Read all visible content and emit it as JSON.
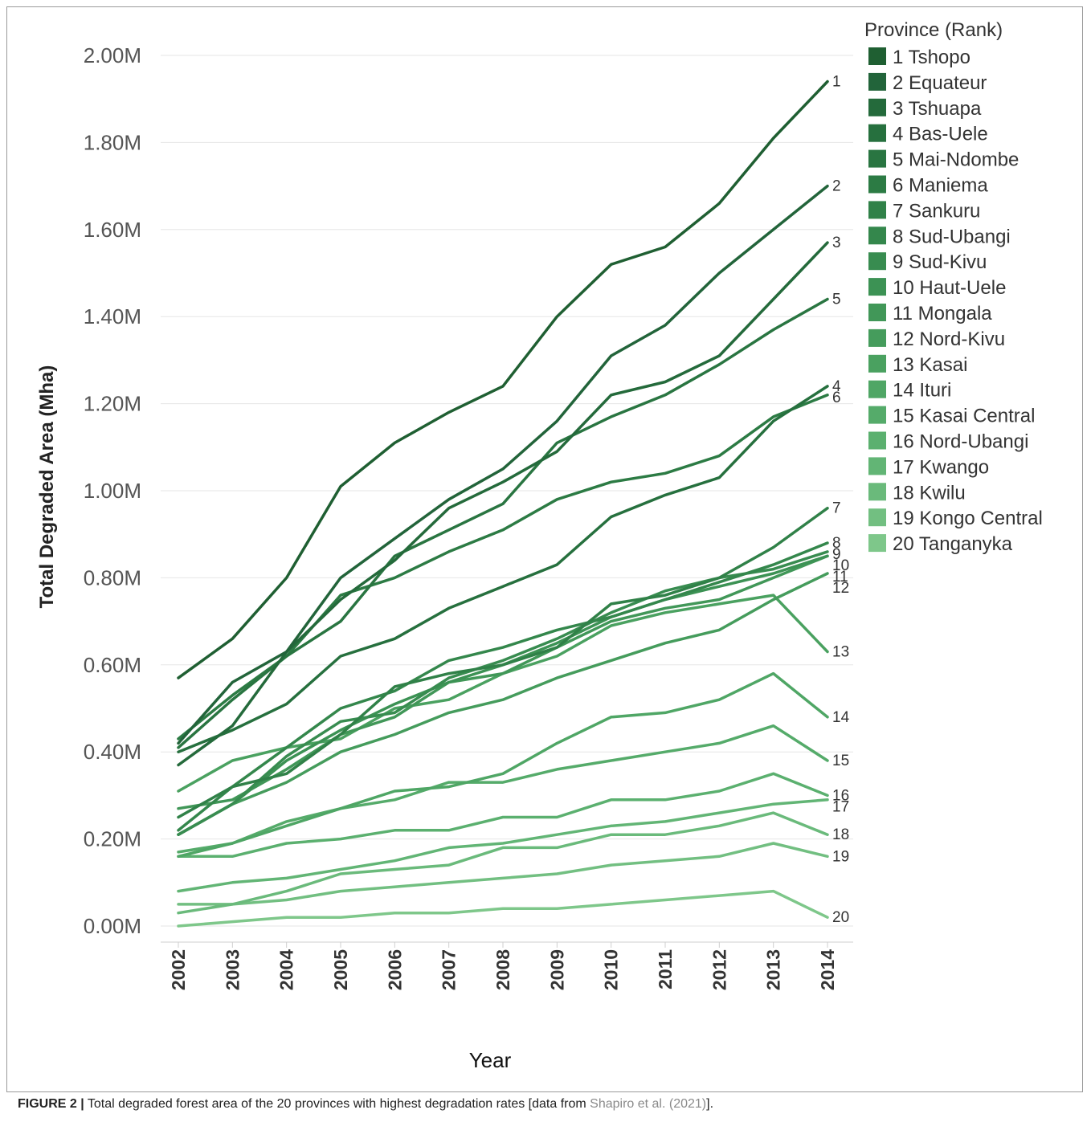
{
  "chart_data": {
    "type": "line",
    "ylabel": "Total Degraded Area (Mha)",
    "xlabel": "Year",
    "x": [
      "2002",
      "2003",
      "2004",
      "2005",
      "2006",
      "2007",
      "2008",
      "2009",
      "2010",
      "2011",
      "2012",
      "2013",
      "2014"
    ],
    "y_ticks": [
      "2.00M",
      "1.80M",
      "1.60M",
      "1.40M",
      "1.20M",
      "1.00M",
      "0.80M",
      "0.60M",
      "0.40M",
      "0.20M",
      "0.00M"
    ],
    "ylim": [
      0,
      2.0
    ],
    "legend_title": "Province (Rank)",
    "legend_position": "right",
    "series": [
      {
        "name": "1 Tshopo",
        "label": "1",
        "color": "#1f5f32",
        "values": [
          0.57,
          0.66,
          0.8,
          1.01,
          1.11,
          1.18,
          1.24,
          1.4,
          1.52,
          1.56,
          1.66,
          1.81,
          1.94
        ]
      },
      {
        "name": "2 Equateur",
        "label": "2",
        "color": "#22643a",
        "values": [
          0.42,
          0.56,
          0.63,
          0.8,
          0.89,
          0.98,
          1.05,
          1.16,
          1.31,
          1.38,
          1.5,
          1.6,
          1.7
        ]
      },
      {
        "name": "3 Tshuapa",
        "label": "3",
        "color": "#246a3b",
        "values": [
          0.37,
          0.46,
          0.63,
          0.75,
          0.84,
          0.96,
          1.02,
          1.09,
          1.22,
          1.25,
          1.31,
          1.44,
          1.57
        ]
      },
      {
        "name": "4 Bas-Uele",
        "label": "4",
        "color": "#26703e",
        "values": [
          0.4,
          0.45,
          0.51,
          0.62,
          0.66,
          0.73,
          0.78,
          0.83,
          0.94,
          0.99,
          1.03,
          1.16,
          1.24
        ]
      },
      {
        "name": "5 Mai-Ndombe",
        "label": "5",
        "color": "#297541",
        "values": [
          0.41,
          0.52,
          0.62,
          0.7,
          0.85,
          0.91,
          0.97,
          1.11,
          1.17,
          1.22,
          1.29,
          1.37,
          1.44
        ]
      },
      {
        "name": "6 Maniema",
        "label": "6",
        "color": "#2c7b44",
        "values": [
          0.43,
          0.53,
          0.62,
          0.76,
          0.8,
          0.86,
          0.91,
          0.98,
          1.02,
          1.04,
          1.08,
          1.17,
          1.22
        ]
      },
      {
        "name": "7 Sankuru",
        "label": "7",
        "color": "#308148",
        "values": [
          0.25,
          0.32,
          0.35,
          0.44,
          0.55,
          0.58,
          0.6,
          0.64,
          0.74,
          0.76,
          0.8,
          0.87,
          0.96
        ]
      },
      {
        "name": "8 Sud-Ubangi",
        "label": "8",
        "color": "#34874c",
        "values": [
          0.22,
          0.32,
          0.41,
          0.5,
          0.54,
          0.61,
          0.64,
          0.68,
          0.71,
          0.75,
          0.79,
          0.83,
          0.88
        ]
      },
      {
        "name": "9 Sud-Kivu",
        "label": "9",
        "color": "#388c50",
        "values": [
          0.21,
          0.28,
          0.39,
          0.47,
          0.49,
          0.57,
          0.61,
          0.66,
          0.72,
          0.77,
          0.8,
          0.82,
          0.86
        ]
      },
      {
        "name": "10 Haut-Uele",
        "label": "10",
        "color": "#3c9254",
        "values": [
          0.21,
          0.28,
          0.38,
          0.45,
          0.51,
          0.56,
          0.6,
          0.65,
          0.71,
          0.75,
          0.78,
          0.81,
          0.85
        ]
      },
      {
        "name": "11 Mongala",
        "label": "11",
        "color": "#419758",
        "values": [
          0.27,
          0.29,
          0.36,
          0.44,
          0.48,
          0.56,
          0.58,
          0.64,
          0.7,
          0.73,
          0.75,
          0.8,
          0.85
        ]
      },
      {
        "name": "12 Nord-Kivu",
        "label": "12",
        "color": "#459c5c",
        "values": [
          0.21,
          0.28,
          0.33,
          0.4,
          0.44,
          0.49,
          0.52,
          0.57,
          0.61,
          0.65,
          0.68,
          0.75,
          0.81
        ]
      },
      {
        "name": "13 Kasai",
        "label": "13",
        "color": "#4aa160",
        "values": [
          0.31,
          0.38,
          0.41,
          0.43,
          0.5,
          0.52,
          0.58,
          0.62,
          0.69,
          0.72,
          0.74,
          0.76,
          0.63
        ]
      },
      {
        "name": "14 Ituri",
        "label": "14",
        "color": "#4fa665",
        "values": [
          0.16,
          0.19,
          0.23,
          0.27,
          0.31,
          0.32,
          0.35,
          0.42,
          0.48,
          0.49,
          0.52,
          0.58,
          0.48
        ]
      },
      {
        "name": "15 Kasai Central",
        "label": "15",
        "color": "#55ab6a",
        "values": [
          0.17,
          0.19,
          0.24,
          0.27,
          0.29,
          0.33,
          0.33,
          0.36,
          0.38,
          0.4,
          0.42,
          0.46,
          0.38
        ]
      },
      {
        "name": "16 Nord-Ubangi",
        "label": "16",
        "color": "#5bb06f",
        "values": [
          0.16,
          0.16,
          0.19,
          0.2,
          0.22,
          0.22,
          0.25,
          0.25,
          0.29,
          0.29,
          0.31,
          0.35,
          0.3
        ]
      },
      {
        "name": "17 Kwango",
        "label": "17",
        "color": "#62b575",
        "values": [
          0.08,
          0.1,
          0.11,
          0.13,
          0.15,
          0.18,
          0.19,
          0.21,
          0.23,
          0.24,
          0.26,
          0.28,
          0.29
        ]
      },
      {
        "name": "18 Kwilu",
        "label": "18",
        "color": "#6aba7b",
        "values": [
          0.03,
          0.05,
          0.08,
          0.12,
          0.13,
          0.14,
          0.18,
          0.18,
          0.21,
          0.21,
          0.23,
          0.26,
          0.21
        ]
      },
      {
        "name": "19 Kongo Central",
        "label": "19",
        "color": "#72bf81",
        "values": [
          0.05,
          0.05,
          0.06,
          0.08,
          0.09,
          0.1,
          0.11,
          0.12,
          0.14,
          0.15,
          0.16,
          0.19,
          0.16
        ]
      },
      {
        "name": "20 Tanganyka",
        "label": "20",
        "color": "#7ec78a",
        "values": [
          0.0,
          0.01,
          0.02,
          0.02,
          0.03,
          0.03,
          0.04,
          0.04,
          0.05,
          0.06,
          0.07,
          0.08,
          0.02
        ]
      }
    ],
    "grid": "horizontal"
  },
  "caption": {
    "label": "FIGURE 2 |",
    "text": " Total degraded forest area of the 20 provinces with highest degradation rates [data from ",
    "reference": "Shapiro et al. (2021)",
    "tail": "]."
  }
}
